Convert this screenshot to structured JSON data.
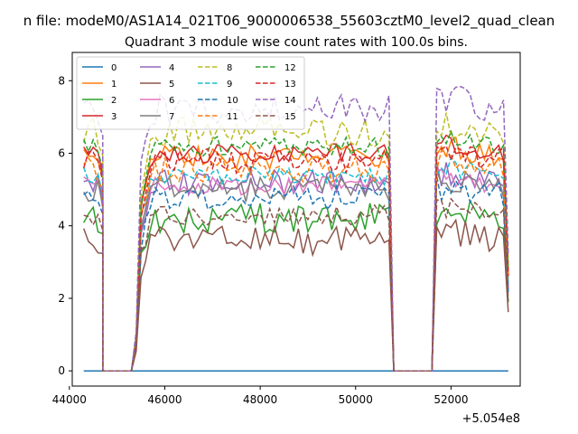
{
  "chart_data": {
    "type": "line",
    "suptitle": "n file: modeM0/AS1A14_021T06_9000006538_55603cztM0_level2_quad_clean",
    "title": "Quadrant 3 module wise count rates with 100.0s bins.",
    "xlabel": "",
    "ylabel": "",
    "x_offset_label": "+5.054e8",
    "xlim": [
      44060,
      53450
    ],
    "ylim": [
      -0.42,
      8.78
    ],
    "x_ticks": [
      44000,
      46000,
      48000,
      50000,
      52000
    ],
    "x_tick_labels": [
      "44000",
      "46000",
      "48000",
      "50000",
      "52000"
    ],
    "y_ticks": [
      0,
      2,
      4,
      6,
      8
    ],
    "y_tick_labels": [
      "0",
      "2",
      "4",
      "6",
      "8"
    ],
    "grid": false,
    "legend_position": "top-left",
    "legend_columns": 4,
    "segments": [
      {
        "start": 44300,
        "end": 44700
      },
      {
        "start": 45300,
        "end": 50800
      },
      {
        "start": 51600,
        "end": 53200
      }
    ],
    "gaps": [
      {
        "start": 44700,
        "end": 45300
      },
      {
        "start": 50800,
        "end": 51600
      }
    ],
    "series": [
      {
        "name": "0",
        "color": "#1f77b4",
        "dash": "solid",
        "level": 0.0
      },
      {
        "name": "1",
        "color": "#ff7f0e",
        "dash": "solid",
        "level": 5.9
      },
      {
        "name": "2",
        "color": "#2ca02c",
        "dash": "solid",
        "level": 4.2
      },
      {
        "name": "3",
        "color": "#d62728",
        "dash": "solid",
        "level": 6.0
      },
      {
        "name": "4",
        "color": "#9467bd",
        "dash": "solid",
        "level": 5.2
      },
      {
        "name": "5",
        "color": "#8c564b",
        "dash": "solid",
        "level": 3.6
      },
      {
        "name": "6",
        "color": "#e377c2",
        "dash": "solid",
        "level": 5.1
      },
      {
        "name": "7",
        "color": "#7f7f7f",
        "dash": "solid",
        "level": 5.0
      },
      {
        "name": "8",
        "color": "#bcbd22",
        "dash": "dashed",
        "level": 6.6
      },
      {
        "name": "9",
        "color": "#17becf",
        "dash": "dashed",
        "level": 5.4
      },
      {
        "name": "10",
        "color": "#1f77b4",
        "dash": "dashed",
        "level": 4.8
      },
      {
        "name": "11",
        "color": "#ff7f0e",
        "dash": "dashed",
        "level": 5.6
      },
      {
        "name": "12",
        "color": "#2ca02c",
        "dash": "dashed",
        "level": 6.2
      },
      {
        "name": "13",
        "color": "#d62728",
        "dash": "dashed",
        "level": 5.8
      },
      {
        "name": "14",
        "color": "#9467bd",
        "dash": "dashed",
        "level": 7.2
      },
      {
        "name": "15",
        "color": "#8c564b",
        "dash": "dashed",
        "level": 4.3
      }
    ]
  }
}
